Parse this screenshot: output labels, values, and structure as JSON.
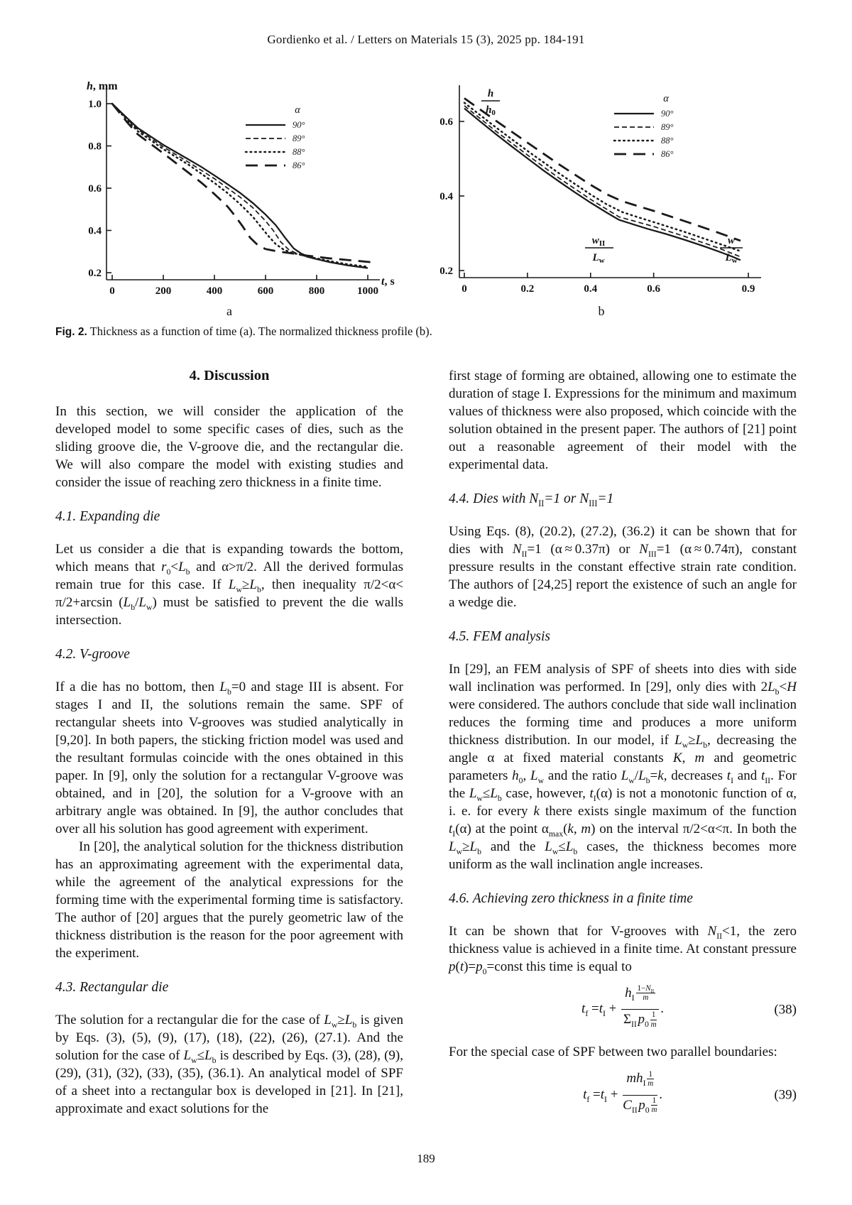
{
  "page": {
    "header": "Gordienko et al. / Letters on Materials 15 (3), 2025 pp. 184-191",
    "page_number": "189"
  },
  "figure": {
    "caption_label": "Fig. 2.",
    "caption_text": " Thickness as a function of time (a). The normalized thickness profile (b)."
  },
  "chart_data": [
    {
      "id": "chart-a",
      "type": "line",
      "title": "Thickness as a function of time",
      "sublabel": "a",
      "xlabel_italic": "t",
      "xlabel_rest": ", s",
      "ylabel_italic": "h",
      "ylabel_rest": ", mm",
      "xlim": [
        0,
        1000
      ],
      "ylim": [
        0.2,
        1.0
      ],
      "xticks": [
        0,
        200,
        400,
        600,
        800,
        1000
      ],
      "xtick_labels": [
        "0",
        "200",
        "400",
        "600",
        "800",
        "1000"
      ],
      "yticks": [
        0.2,
        0.4,
        0.6,
        0.8,
        1.0
      ],
      "ytick_labels": [
        "0.2",
        "0.4",
        "0.6",
        "0.8",
        "1.0"
      ],
      "legend_title": "α",
      "legend_position": "top-right",
      "grid": false,
      "series": [
        {
          "name": "90°",
          "style": "solid",
          "points": [
            [
              0,
              1.0
            ],
            [
              30,
              0.965
            ],
            [
              60,
              0.93
            ],
            [
              100,
              0.885
            ],
            [
              150,
              0.845
            ],
            [
              200,
              0.805
            ],
            [
              250,
              0.77
            ],
            [
              300,
              0.735
            ],
            [
              350,
              0.7
            ],
            [
              400,
              0.66
            ],
            [
              450,
              0.62
            ],
            [
              500,
              0.578
            ],
            [
              550,
              0.53
            ],
            [
              600,
              0.475
            ],
            [
              640,
              0.425
            ],
            [
              680,
              0.36
            ],
            [
              710,
              0.315
            ],
            [
              740,
              0.29
            ],
            [
              780,
              0.27
            ],
            [
              850,
              0.25
            ],
            [
              920,
              0.235
            ],
            [
              1000,
              0.222
            ]
          ]
        },
        {
          "name": "89°",
          "style": "dashed",
          "points": [
            [
              0,
              1.0
            ],
            [
              60,
              0.925
            ],
            [
              100,
              0.878
            ],
            [
              200,
              0.795
            ],
            [
              300,
              0.722
            ],
            [
              400,
              0.645
            ],
            [
              500,
              0.558
            ],
            [
              550,
              0.508
            ],
            [
              600,
              0.445
            ],
            [
              630,
              0.4
            ],
            [
              660,
              0.345
            ],
            [
              690,
              0.31
            ],
            [
              720,
              0.292
            ],
            [
              760,
              0.275
            ],
            [
              850,
              0.25
            ],
            [
              920,
              0.235
            ],
            [
              1000,
              0.225
            ]
          ]
        },
        {
          "name": "88°",
          "style": "dotted",
          "points": [
            [
              0,
              1.0
            ],
            [
              60,
              0.92
            ],
            [
              100,
              0.87
            ],
            [
              200,
              0.785
            ],
            [
              300,
              0.71
            ],
            [
              400,
              0.625
            ],
            [
              450,
              0.578
            ],
            [
              500,
              0.525
            ],
            [
              550,
              0.465
            ],
            [
              580,
              0.42
            ],
            [
              610,
              0.375
            ],
            [
              640,
              0.335
            ],
            [
              670,
              0.31
            ],
            [
              700,
              0.295
            ],
            [
              760,
              0.278
            ],
            [
              850,
              0.255
            ],
            [
              920,
              0.24
            ],
            [
              1000,
              0.228
            ]
          ]
        },
        {
          "name": "86°",
          "style": "longdash",
          "points": [
            [
              0,
              1.0
            ],
            [
              60,
              0.91
            ],
            [
              100,
              0.855
            ],
            [
              200,
              0.765
            ],
            [
              300,
              0.672
            ],
            [
              350,
              0.625
            ],
            [
              400,
              0.572
            ],
            [
              450,
              0.515
            ],
            [
              480,
              0.47
            ],
            [
              510,
              0.42
            ],
            [
              540,
              0.365
            ],
            [
              570,
              0.33
            ],
            [
              600,
              0.312
            ],
            [
              650,
              0.3
            ],
            [
              700,
              0.292
            ],
            [
              760,
              0.281
            ],
            [
              850,
              0.268
            ],
            [
              920,
              0.26
            ],
            [
              1010,
              0.25
            ]
          ]
        }
      ]
    },
    {
      "id": "chart-b",
      "type": "line",
      "title": "The normalized thickness profile",
      "sublabel": "b",
      "ylabel_frac": {
        "top": "h",
        "bottom": "h",
        "bottom_sub": "0"
      },
      "xlabel_frac_mid": {
        "top": "w",
        "top_sub": "II",
        "bottom": "L",
        "bottom_sub": "w"
      },
      "xlabel_frac_end": {
        "top": "w",
        "bottom": "L",
        "bottom_sub": "w"
      },
      "xlim": [
        0,
        0.9
      ],
      "ylim": [
        0.2,
        0.6
      ],
      "xticks": [
        0,
        0.2,
        0.4,
        0.6,
        0.9
      ],
      "xtick_labels": [
        "0",
        "0.2",
        "0.4",
        "0.6",
        "0.9"
      ],
      "yticks": [
        0.2,
        0.4,
        0.6
      ],
      "ytick_labels": [
        "0.2",
        "0.4",
        "0.6"
      ],
      "legend_title": "α",
      "legend_position": "top-right",
      "grid": false,
      "series": [
        {
          "name": "90°",
          "style": "solid",
          "points": [
            [
              0,
              0.635
            ],
            [
              0.05,
              0.6
            ],
            [
              0.1,
              0.566
            ],
            [
              0.15,
              0.533
            ],
            [
              0.2,
              0.501
            ],
            [
              0.25,
              0.469
            ],
            [
              0.3,
              0.439
            ],
            [
              0.35,
              0.41
            ],
            [
              0.4,
              0.382
            ],
            [
              0.45,
              0.356
            ],
            [
              0.49,
              0.336
            ],
            [
              0.52,
              0.328
            ],
            [
              0.58,
              0.312
            ],
            [
              0.64,
              0.298
            ],
            [
              0.7,
              0.282
            ],
            [
              0.76,
              0.265
            ],
            [
              0.81,
              0.25
            ],
            [
              0.85,
              0.237
            ],
            [
              0.875,
              0.228
            ]
          ]
        },
        {
          "name": "89°",
          "style": "dashed",
          "points": [
            [
              0,
              0.642
            ],
            [
              0.1,
              0.574
            ],
            [
              0.2,
              0.51
            ],
            [
              0.3,
              0.448
            ],
            [
              0.4,
              0.391
            ],
            [
              0.45,
              0.365
            ],
            [
              0.49,
              0.344
            ],
            [
              0.55,
              0.33
            ],
            [
              0.6,
              0.318
            ],
            [
              0.7,
              0.291
            ],
            [
              0.8,
              0.262
            ],
            [
              0.875,
              0.237
            ]
          ]
        },
        {
          "name": "88°",
          "style": "dotted",
          "points": [
            [
              0,
              0.65
            ],
            [
              0.1,
              0.584
            ],
            [
              0.2,
              0.521
            ],
            [
              0.3,
              0.461
            ],
            [
              0.4,
              0.404
            ],
            [
              0.45,
              0.378
            ],
            [
              0.5,
              0.357
            ],
            [
              0.55,
              0.343
            ],
            [
              0.6,
              0.33
            ],
            [
              0.7,
              0.303
            ],
            [
              0.8,
              0.274
            ],
            [
              0.875,
              0.252
            ]
          ]
        },
        {
          "name": "86°",
          "style": "longdash",
          "points": [
            [
              0,
              0.662
            ],
            [
              0.05,
              0.632
            ],
            [
              0.1,
              0.602
            ],
            [
              0.2,
              0.543
            ],
            [
              0.3,
              0.485
            ],
            [
              0.4,
              0.43
            ],
            [
              0.45,
              0.405
            ],
            [
              0.5,
              0.386
            ],
            [
              0.53,
              0.378
            ],
            [
              0.6,
              0.36
            ],
            [
              0.7,
              0.332
            ],
            [
              0.8,
              0.303
            ],
            [
              0.875,
              0.28
            ]
          ]
        }
      ]
    }
  ],
  "left": {
    "title": "4. Discussion",
    "p1": "In this section, we will consider the application of the developed model to some specific cases of dies, such as the sliding groove die, the V-groove die, and the rectangular die. We will also compare the model with existing studies and consider the issue of reaching zero thickness in a finite time.",
    "h41": "4.1. Expanding die",
    "p41": "Let us consider a die that is expanding towards the bottom, which means that <i>r</i><sub>0</sub>&lt;<i>L</i><sub>b</sub> and α&gt;π/2. All the derived formulas remain true for this case. If <i>L</i><sub>w</sub>≥<i>L</i><sub>b</sub>, then inequality π/2&lt;α&lt; π/2+arcsin (<i>L</i><sub>b</sub>/<i>L</i><sub>w</sub>) must be satisfied to prevent the die walls intersection.",
    "h42": "4.2. V-groove",
    "p42a": "If a die has no bottom, then <i>L</i><sub>b</sub>=0 and stage III is absent. For stages I and II, the solutions remain the same. SPF of rectangular sheets into V-grooves was studied analytically in [9,20]. In both papers, the sticking friction model was used and the resultant formulas coincide with the ones obtained in this paper. In [9], only the solution for a rectangular V-groove was obtained, and in [20], the solution for a V-groove with an arbitrary angle was obtained. In [9], the author concludes that over all his solution has good agreement with experiment.",
    "p42b": "In [20], the analytical solution for the thickness distribution has an approximating agreement with the experimental data, while the agreement of the analytical expressions for the forming time with the experimental forming time is satisfactory. The author of [20] argues that the purely geometric law of the thickness distribution is the reason for the poor agreement with the experiment.",
    "h43": "4.3. Rectangular die",
    "p43": "The solution for a rectangular die for the case of <i>L</i><sub>w</sub>≥<i>L</i><sub>b</sub> is given by Eqs. (3), (5), (9), (17), (18), (22), (26), (27.1). And the solution for the case of <i>L</i><sub>w</sub>≤<i>L</i><sub>b</sub> is described by Eqs. (3), (28), (9), (29), (31), (32), (33), (35), (36.1). An analytical model of SPF of a sheet into a rectangular box is developed in [21]. In [21], approximate and exact solutions for the"
  },
  "right": {
    "p1": "first stage of forming are obtained, allowing one to estimate the duration of stage I. Expressions for the minimum and maximum values of thickness were also proposed, which coincide with the solution obtained in the present paper. The authors of [21] point out a reasonable agreement of their model with the experimental data.",
    "h44": "4.4. Dies with N<sub>II</sub>=1 or N<sub>III</sub>=1",
    "p44": "Using Eqs. (8), (20.2), (27.2), (36.2) it can be shown that for dies with <i>N</i><sub>II</sub>=1 (α&thinsp;≈&thinsp;0.37π) or <i>N</i><sub>III</sub>=1 (α&thinsp;≈&thinsp;0.74π), constant pressure results in the constant effective strain rate condition. The authors of [24,25] report the existence of such an angle for a wedge die.",
    "h45": "4.5. FEM analysis",
    "p45": "In [29], an FEM analysis of SPF of sheets into dies with side wall inclination was performed. In [29], only dies with 2<i>L</i><sub>b</sub>&lt;<i>H</i> were considered. The authors conclude that side wall inclination reduces the forming time and produces a more uniform thickness distribution. In our model, if <i>L</i><sub>w</sub>≥<i>L</i><sub>b</sub>, decreasing the angle α at fixed material constants <i>K</i>, <i>m</i> and geometric parameters <i>h</i><sub>0</sub>, <i>L</i><sub>w</sub> and the ratio <i>L</i><sub>w</sub>/<i>L</i><sub>b</sub>=<i>k</i>, decreases <i>t</i><sub>I</sub> and <i>t</i><sub>II</sub>. For the <i>L</i><sub>w</sub>≤<i>L</i><sub>b</sub> case, however, <i>t</i><sub>I</sub>(α) is not a monotonic function of α, i. e. for every <i>k</i> there exists single maximum of the function <i>t</i><sub>I</sub>(α) at the point α<sub>max</sub>(<i>k</i>, <i>m</i>) on the interval π/2&lt;α&lt;π. In both the <i>L</i><sub>w</sub>≥<i>L</i><sub>b</sub> and the <i>L</i><sub>w</sub>≤<i>L</i><sub>b</sub> cases, the thickness becomes more uniform as the wall inclination angle increases.",
    "h46": "4.6. Achieving zero thickness in a finite time",
    "p46": "It can be shown that for V-grooves with <i>N</i><sub>II</sub>&lt;1, the zero thickness value is achieved in a finite time. At constant pressure <i>p</i>(<i>t</i>)=<i>p</i><sub>0</sub>=const this time is equal to",
    "eq38": {
      "html": "<i>t</i><sub>f</sub> =<i>t</i><sub>I</sub> + <span class='frac'><span class='fnum'><i>h</i><sub>I</sub><span class='expfrac'><span>1−<i>N</i><sub>II</sub></span><span><i>m</i></span></span></span><span class='fden'>Σ<sub>II</sub>&hairsp;<i>p</i><sub>0</sub><span class='expfrac'><span>1</span><span><i>m</i></span></span></span></span>.",
      "number": "(38)"
    },
    "p47": "For the special case of SPF between two parallel boundaries:",
    "eq39": {
      "html": "<i>t</i><sub>f</sub> =<i>t</i><sub>I</sub> + <span class='frac'><span class='fnum'><i>mh</i><sub>I</sub><span class='expfrac'><span>1</span><span><i>m</i></span></span></span><span class='fden'><i>C</i><sub>II</sub>&hairsp;<i>p</i><sub>0</sub><span class='expfrac'><span>1</span><span><i>m</i></span></span></span></span>.",
      "number": "(39)"
    }
  }
}
